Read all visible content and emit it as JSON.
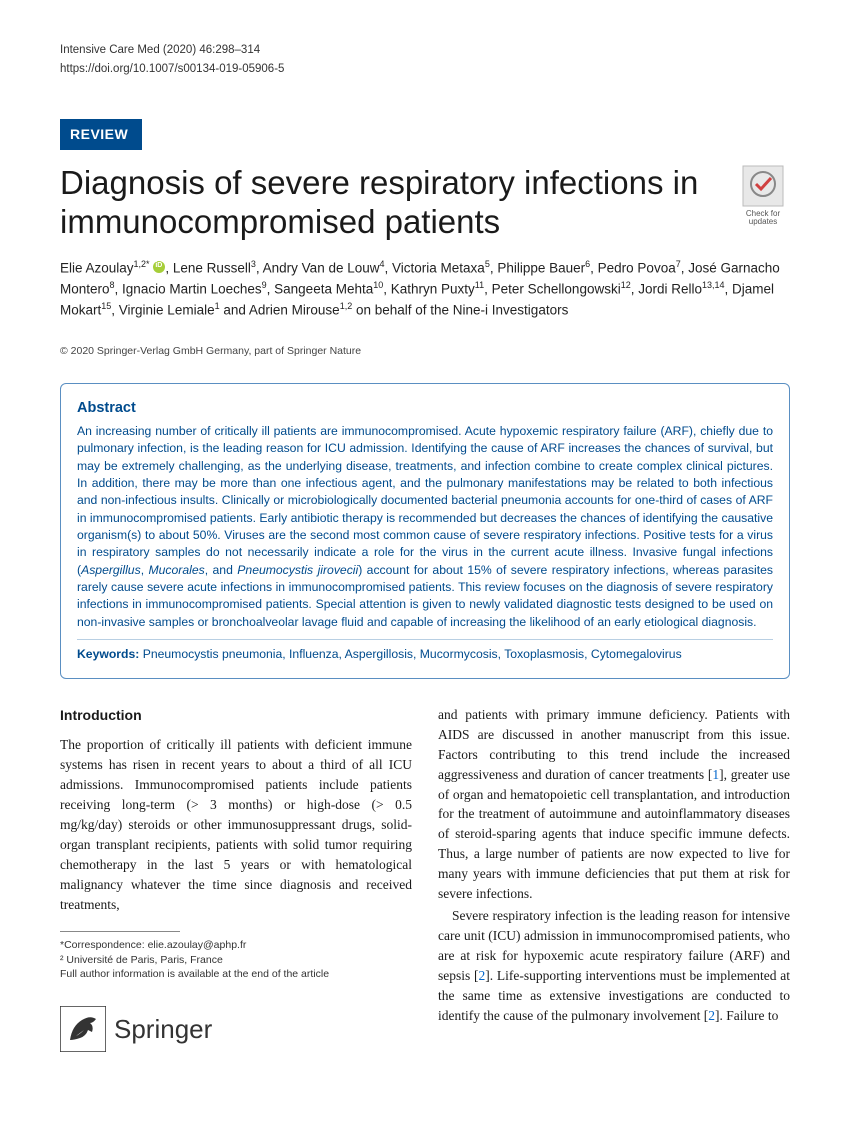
{
  "journal_ref": "Intensive Care Med (2020) 46:298–314",
  "doi": "https://doi.org/10.1007/s00134-019-05906-5",
  "article_type": "REVIEW",
  "title": "Diagnosis of severe respiratory infections in immunocompromised patients",
  "check_updates_label": "Check for updates",
  "authors_html": "Elie Azoulay<sup>1,2*</sup> <span class=\"orcid\" data-name=\"orcid-icon\" data-interactable=\"false\"></span>, Lene Russell<sup>3</sup>, Andry Van de Louw<sup>4</sup>, Victoria Metaxa<sup>5</sup>, Philippe Bauer<sup>6</sup>, Pedro Povoa<sup>7</sup>, José Garnacho Montero<sup>8</sup>, Ignacio Martin Loeches<sup>9</sup>, Sangeeta Mehta<sup>10</sup>, Kathryn Puxty<sup>11</sup>, Peter Schellongowski<sup>12</sup>, Jordi Rello<sup>13,14</sup>, Djamel Mokart<sup>15</sup>, Virginie Lemiale<sup>1</sup> and Adrien Mirouse<sup>1,2</sup> on behalf of the Nine-i Investigators",
  "copyright": "© 2020 Springer-Verlag GmbH Germany, part of Springer Nature",
  "abstract_heading": "Abstract",
  "abstract_body": "An increasing number of critically ill patients are immunocompromised. Acute hypoxemic respiratory failure (ARF), chiefly due to pulmonary infection, is the leading reason for ICU admission. Identifying the cause of ARF increases the chances of survival, but may be extremely challenging, as the underlying disease, treatments, and infection combine to create complex clinical pictures. In addition, there may be more than one infectious agent, and the pulmonary manifestations may be related to both infectious and non-infectious insults. Clinically or microbiologically documented bacterial pneumonia accounts for one-third of cases of ARF in immunocompromised patients. Early antibiotic therapy is recommended but decreases the chances of identifying the causative organism(s) to about 50%. Viruses are the second most common cause of severe respiratory infections. Positive tests for a virus in respiratory samples do not necessarily indicate a role for the virus in the current acute illness. Invasive fungal infections (<em>Aspergillus</em>, <em>Mucorales</em>, and <em>Pneumocystis jirovecii</em>) account for about 15% of severe respiratory infections, whereas parasites rarely cause severe acute infections in immunocompromised patients. This review focuses on the diagnosis of severe respiratory infections in immunocompromised patients. Special attention is given to newly validated diagnostic tests designed to be used on non-invasive samples or bronchoalveolar lavage fluid and capable of increasing the likelihood of an early etiological diagnosis.",
  "keywords_label": "Keywords:",
  "keywords": "Pneumocystis pneumonia, Influenza, Aspergillosis, Mucormycosis, Toxoplasmosis, Cytomegalovirus",
  "intro_heading": "Introduction",
  "intro_para1": "The proportion of critically ill patients with deficient immune systems has risen in recent years to about a third of all ICU admissions. Immunocompromised patients include patients receiving long-term (> 3 months) or high-dose (> 0.5 mg/kg/day) steroids or other immunosuppressant drugs, solid-organ transplant recipients, patients with solid tumor requiring chemotherapy in the last 5 years or with hematological malignancy whatever the time since diagnosis and received treatments,",
  "col2_para1_html": "and patients with primary immune deficiency. Patients with AIDS are discussed in another manuscript from this issue. Factors contributing to this trend include the increased aggressiveness and duration of cancer treatments [<span class=\"ref-link\">1</span>], greater use of organ and hematopoietic cell transplantation, and introduction for the treatment of autoimmune and autoinflammatory diseases of steroid-sparing agents that induce specific immune defects. Thus, a large number of patients are now expected to live for many years with immune deficiencies that put them at risk for severe infections.",
  "col2_para2_html": "Severe respiratory infection is the leading reason for intensive care unit (ICU) admission in immunocompromised patients, who are at risk for hypoxemic acute respiratory failure (ARF) and sepsis [<span class=\"ref-link\">2</span>]. Life-supporting interventions must be implemented at the same time as extensive investigations are conducted to identify the cause of the pulmonary involvement [<span class=\"ref-link\">2</span>]. Failure to",
  "correspondence_label": "*Correspondence:",
  "correspondence_email": "elie.azoulay@aphp.fr",
  "affiliation2": "² Université de Paris, Paris, France",
  "affiliation_note": "Full author information is available at the end of the article",
  "publisher_logo_text": "Springer",
  "colors": {
    "brand_blue": "#004b8d",
    "abstract_border": "#5a8fc2",
    "link": "#0066cc",
    "orcid_green": "#a6ce39"
  }
}
